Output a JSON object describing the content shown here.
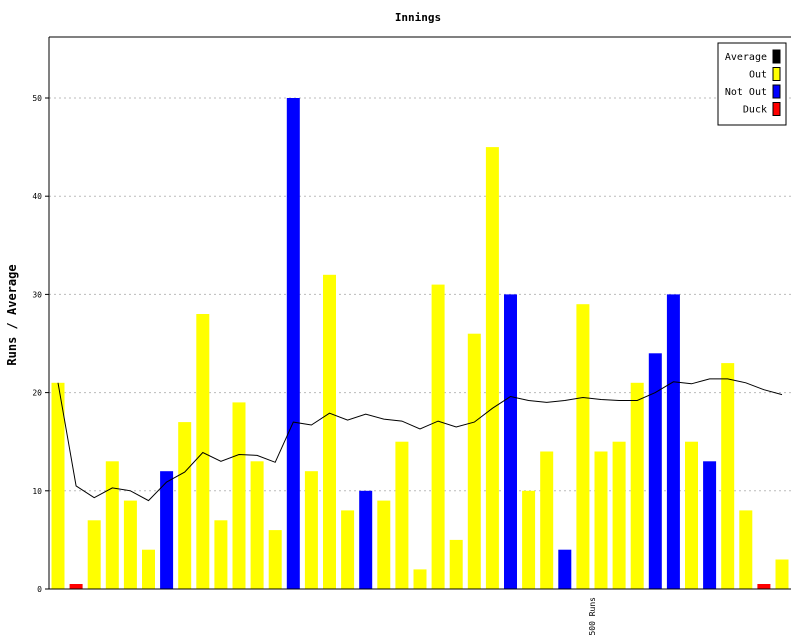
{
  "chart_data": {
    "type": "bar",
    "title": "Innings",
    "ylabel": "Runs / Average",
    "xlabel": "",
    "ylim": [
      0,
      56
    ],
    "yticks": [
      0,
      10,
      20,
      30,
      40,
      50
    ],
    "grid": true,
    "legend_position": "top-right",
    "legend": [
      {
        "name": "Average",
        "color": "#000000"
      },
      {
        "name": "Out",
        "color": "#ffff00"
      },
      {
        "name": "Not Out",
        "color": "#0000ff"
      },
      {
        "name": "Duck",
        "color": "#ff0000"
      }
    ],
    "innings": [
      {
        "runs": 21,
        "status": "Out"
      },
      {
        "runs": 0,
        "status": "Duck"
      },
      {
        "runs": 7,
        "status": "Out"
      },
      {
        "runs": 13,
        "status": "Out"
      },
      {
        "runs": 9,
        "status": "Out"
      },
      {
        "runs": 4,
        "status": "Out"
      },
      {
        "runs": 12,
        "status": "Not Out"
      },
      {
        "runs": 17,
        "status": "Out"
      },
      {
        "runs": 28,
        "status": "Out"
      },
      {
        "runs": 7,
        "status": "Out"
      },
      {
        "runs": 19,
        "status": "Out"
      },
      {
        "runs": 13,
        "status": "Out"
      },
      {
        "runs": 6,
        "status": "Out"
      },
      {
        "runs": 50,
        "status": "Not Out"
      },
      {
        "runs": 12,
        "status": "Out"
      },
      {
        "runs": 32,
        "status": "Out"
      },
      {
        "runs": 8,
        "status": "Out"
      },
      {
        "runs": 10,
        "status": "Not Out"
      },
      {
        "runs": 9,
        "status": "Out"
      },
      {
        "runs": 15,
        "status": "Out"
      },
      {
        "runs": 2,
        "status": "Out"
      },
      {
        "runs": 31,
        "status": "Out"
      },
      {
        "runs": 5,
        "status": "Out"
      },
      {
        "runs": 26,
        "status": "Out"
      },
      {
        "runs": 45,
        "status": "Out"
      },
      {
        "runs": 30,
        "status": "Not Out"
      },
      {
        "runs": 10,
        "status": "Out"
      },
      {
        "runs": 14,
        "status": "Out"
      },
      {
        "runs": 4,
        "status": "Not Out"
      },
      {
        "runs": 29,
        "status": "Out"
      },
      {
        "runs": 14,
        "status": "Out"
      },
      {
        "runs": 15,
        "status": "Out"
      },
      {
        "runs": 21,
        "status": "Out"
      },
      {
        "runs": 24,
        "status": "Not Out"
      },
      {
        "runs": 30,
        "status": "Not Out"
      },
      {
        "runs": 15,
        "status": "Out"
      },
      {
        "runs": 13,
        "status": "Not Out"
      },
      {
        "runs": 23,
        "status": "Out"
      },
      {
        "runs": 8,
        "status": "Out"
      },
      {
        "runs": 0,
        "status": "Duck"
      },
      {
        "runs": 3,
        "status": "Out"
      }
    ],
    "average": [
      21,
      10.5,
      9.3,
      10.3,
      10,
      9,
      10.9,
      11.9,
      13.9,
      13,
      13.7,
      13.6,
      12.9,
      17,
      16.7,
      17.9,
      17.2,
      17.8,
      17.3,
      17.1,
      16.3,
      17.1,
      16.5,
      17,
      18.4,
      19.6,
      19.2,
      19,
      19.2,
      19.5,
      19.3,
      19.2,
      19.2,
      20,
      21.1,
      20.9,
      21.4,
      21.4,
      21,
      20.3,
      19.8
    ],
    "annotations": [
      {
        "text": "500 Runs",
        "after_innings": 30
      }
    ]
  }
}
